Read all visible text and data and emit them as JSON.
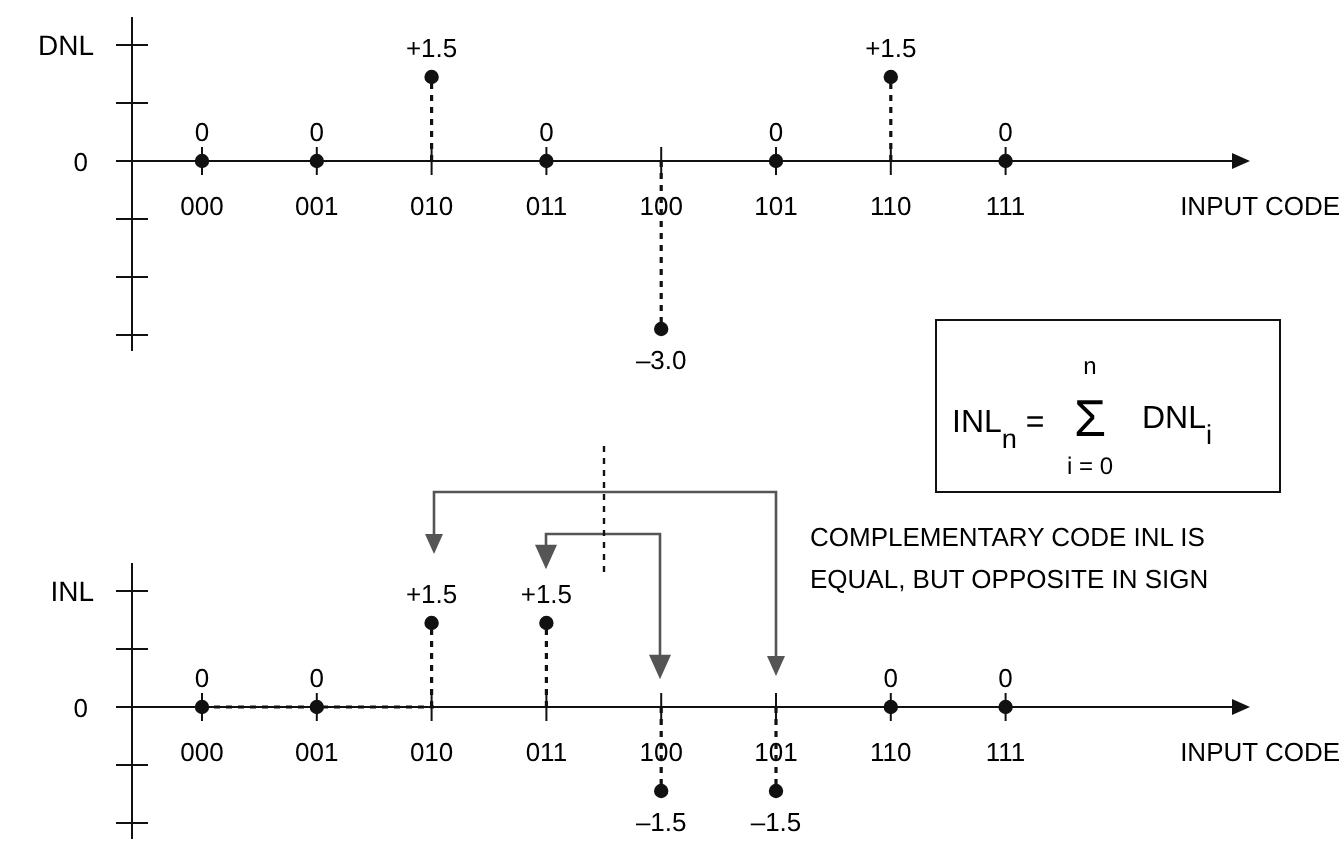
{
  "chart_data": [
    {
      "type": "lollipop",
      "ylabel": "DNL",
      "xlabel": "INPUT CODE",
      "categories": [
        "000",
        "001",
        "010",
        "011",
        "100",
        "101",
        "110",
        "111"
      ],
      "values": [
        0,
        0,
        1.5,
        0,
        -3.0,
        0,
        1.5,
        0
      ],
      "value_labels": [
        "0",
        "0",
        "+1.5",
        "0",
        "–3.0",
        "0",
        "+1.5",
        "0"
      ],
      "marker": "circle",
      "line_style": "dashed",
      "annotations": [
        "0"
      ]
    },
    {
      "type": "lollipop",
      "ylabel": "INL",
      "xlabel": "INPUT CODE",
      "categories": [
        "000",
        "001",
        "010",
        "011",
        "100",
        "101",
        "110",
        "111"
      ],
      "values": [
        0,
        0,
        1.5,
        1.5,
        -1.5,
        -1.5,
        0,
        0
      ],
      "value_labels": [
        "0",
        "0",
        "+1.5",
        "+1.5",
        "–1.5",
        "–1.5",
        "0",
        "0"
      ],
      "marker": "circle",
      "line_style": "dashed",
      "annotations": [
        "0",
        "INL$_{n}$ =",
        "Σ",
        "n",
        "i = 0",
        "DNL$_{i}$",
        "COMPLEMENTARY CODE INL IS",
        "EQUAL, BUT OPPOSITE IN SIGN"
      ]
    }
  ]
}
